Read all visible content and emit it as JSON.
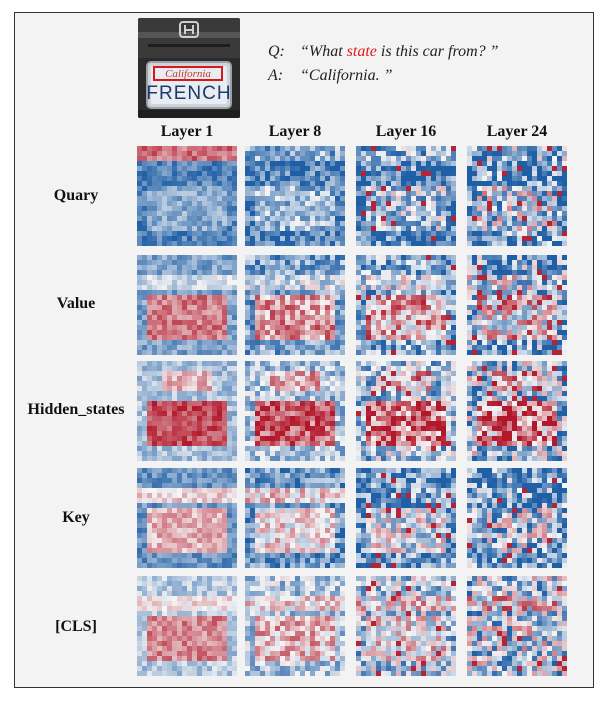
{
  "qa": {
    "q_prefix": "Q:",
    "q_before": "“What ",
    "q_highlight": "state",
    "q_after": " is this car from? ”",
    "a_prefix": "A:",
    "a_text": "“California. ”"
  },
  "plate": {
    "top_text": "California",
    "main_text": "FRENCH"
  },
  "columns": [
    "Layer 1",
    "Layer 8",
    "Layer 16",
    "Layer 24"
  ],
  "rows": [
    "Quary",
    "Value",
    "Hidden_states",
    "Key",
    "[CLS]"
  ],
  "colors": {
    "low": "#1f5fa6",
    "mid": "#f5f5f5",
    "high": "#b2182b",
    "highlight_text": "#e01b1b",
    "frame_bg": "#f3f3f3"
  }
}
